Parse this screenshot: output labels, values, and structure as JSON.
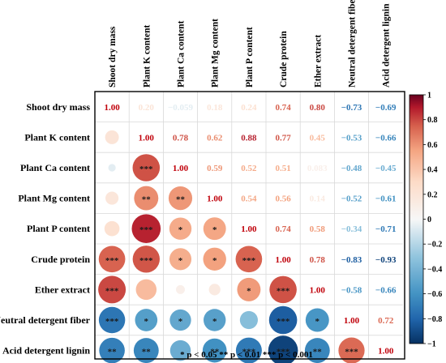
{
  "chart_data": {
    "type": "heatmap",
    "title": "",
    "variables": [
      "Shoot dry mass",
      "Plant K content",
      "Plant Ca content",
      "Plant Mg content",
      "Plant P content",
      "Crude protein",
      "Ether extract",
      "Neutral detergent fiber",
      "Acid detergent lignin"
    ],
    "values": [
      [
        1.0,
        0.2,
        -0.059,
        0.18,
        0.24,
        0.74,
        0.8,
        -0.73,
        -0.69
      ],
      [
        0.2,
        1.0,
        0.78,
        0.62,
        0.88,
        0.77,
        0.45,
        -0.53,
        -0.66
      ],
      [
        -0.059,
        0.78,
        1.0,
        0.59,
        0.52,
        0.51,
        0.083,
        -0.48,
        -0.45
      ],
      [
        0.18,
        0.62,
        0.59,
        1.0,
        0.54,
        0.56,
        0.14,
        -0.52,
        -0.61
      ],
      [
        0.24,
        0.88,
        0.52,
        0.54,
        1.0,
        0.74,
        0.58,
        -0.34,
        -0.71
      ],
      [
        0.74,
        0.77,
        0.51,
        0.56,
        0.74,
        1.0,
        0.78,
        -0.83,
        -0.93
      ],
      [
        0.8,
        0.45,
        0.083,
        0.14,
        0.58,
        0.78,
        1.0,
        -0.58,
        -0.66
      ],
      [
        -0.73,
        -0.53,
        -0.48,
        -0.52,
        -0.34,
        -0.83,
        -0.58,
        1.0,
        0.72
      ],
      [
        -0.69,
        -0.66,
        -0.45,
        -0.61,
        -0.71,
        -0.93,
        -0.66,
        0.72,
        1.0
      ]
    ],
    "value_labels_upper": [
      [
        "",
        "0.20",
        "−0.059",
        "0.18",
        "0.24",
        "0.74",
        "0.80",
        "−0.73",
        "−0.69"
      ],
      [
        "",
        "",
        "0.78",
        "0.62",
        "0.88",
        "0.77",
        "0.45",
        "−0.53",
        "−0.66"
      ],
      [
        "",
        "",
        "",
        "0.59",
        "0.52",
        "0.51",
        "0.083",
        "−0.48",
        "−0.45"
      ],
      [
        "",
        "",
        "",
        "",
        "0.54",
        "0.56",
        "0.14",
        "−0.52",
        "−0.61"
      ],
      [
        "",
        "",
        "",
        "",
        "",
        "0.74",
        "0.58",
        "−0.34",
        "−0.71"
      ],
      [
        "",
        "",
        "",
        "",
        "",
        "",
        "0.78",
        "−0.83",
        "−0.93"
      ],
      [
        "",
        "",
        "",
        "",
        "",
        "",
        "",
        "−0.58",
        "−0.66"
      ],
      [
        "",
        "",
        "",
        "",
        "",
        "",
        "",
        "",
        "0.72"
      ],
      [
        "",
        "",
        "",
        "",
        "",
        "",
        "",
        "",
        ""
      ]
    ],
    "diagonal_label": "1.00",
    "significance_lower": [
      [
        "",
        "",
        "",
        "",
        "",
        "",
        "",
        "",
        ""
      ],
      [
        "",
        "",
        "",
        "",
        "",
        "",
        "",
        "",
        ""
      ],
      [
        "",
        "***",
        "",
        "",
        "",
        "",
        "",
        "",
        ""
      ],
      [
        "",
        "**",
        "**",
        "",
        "",
        "",
        "",
        "",
        ""
      ],
      [
        "",
        "***",
        "*",
        "*",
        "",
        "",
        "",
        "",
        ""
      ],
      [
        "***",
        "***",
        "*",
        "*",
        "***",
        "",
        "",
        "",
        ""
      ],
      [
        "***",
        "",
        "",
        "",
        "*",
        "***",
        "",
        "",
        ""
      ],
      [
        "***",
        "*",
        "*",
        "*",
        "",
        "***",
        "*",
        "",
        ""
      ],
      [
        "**",
        "**",
        "",
        "**",
        "***",
        "***",
        "**",
        "***",
        ""
      ]
    ],
    "colorbar": {
      "range": [
        -1,
        1
      ],
      "ticks": [
        1,
        0.8,
        0.6,
        0.4,
        0.2,
        0,
        -0.2,
        -0.4,
        -0.6,
        -0.8,
        -1
      ],
      "tick_labels": [
        "1",
        "0.8",
        "0.6",
        "0.4",
        "0.2",
        "0",
        "−0.2",
        "−0.4",
        "−0.6",
        "−0.8",
        "−1"
      ],
      "colors": {
        "neg_dark": "#053061",
        "neg_mid": "#2166ac",
        "neg_light": "#4393c3",
        "neg_pale": "#92c5de",
        "neutral": "#f7f7f7",
        "pos_pale": "#fddbc7",
        "pos_light": "#f4a582",
        "pos_mid": "#d6604d",
        "pos_strong": "#b2182b",
        "pos_dark": "#67001f"
      }
    },
    "legend_note": "* p < 0.05  ** p < 0.01  *** p < 0.001",
    "grid": true
  }
}
